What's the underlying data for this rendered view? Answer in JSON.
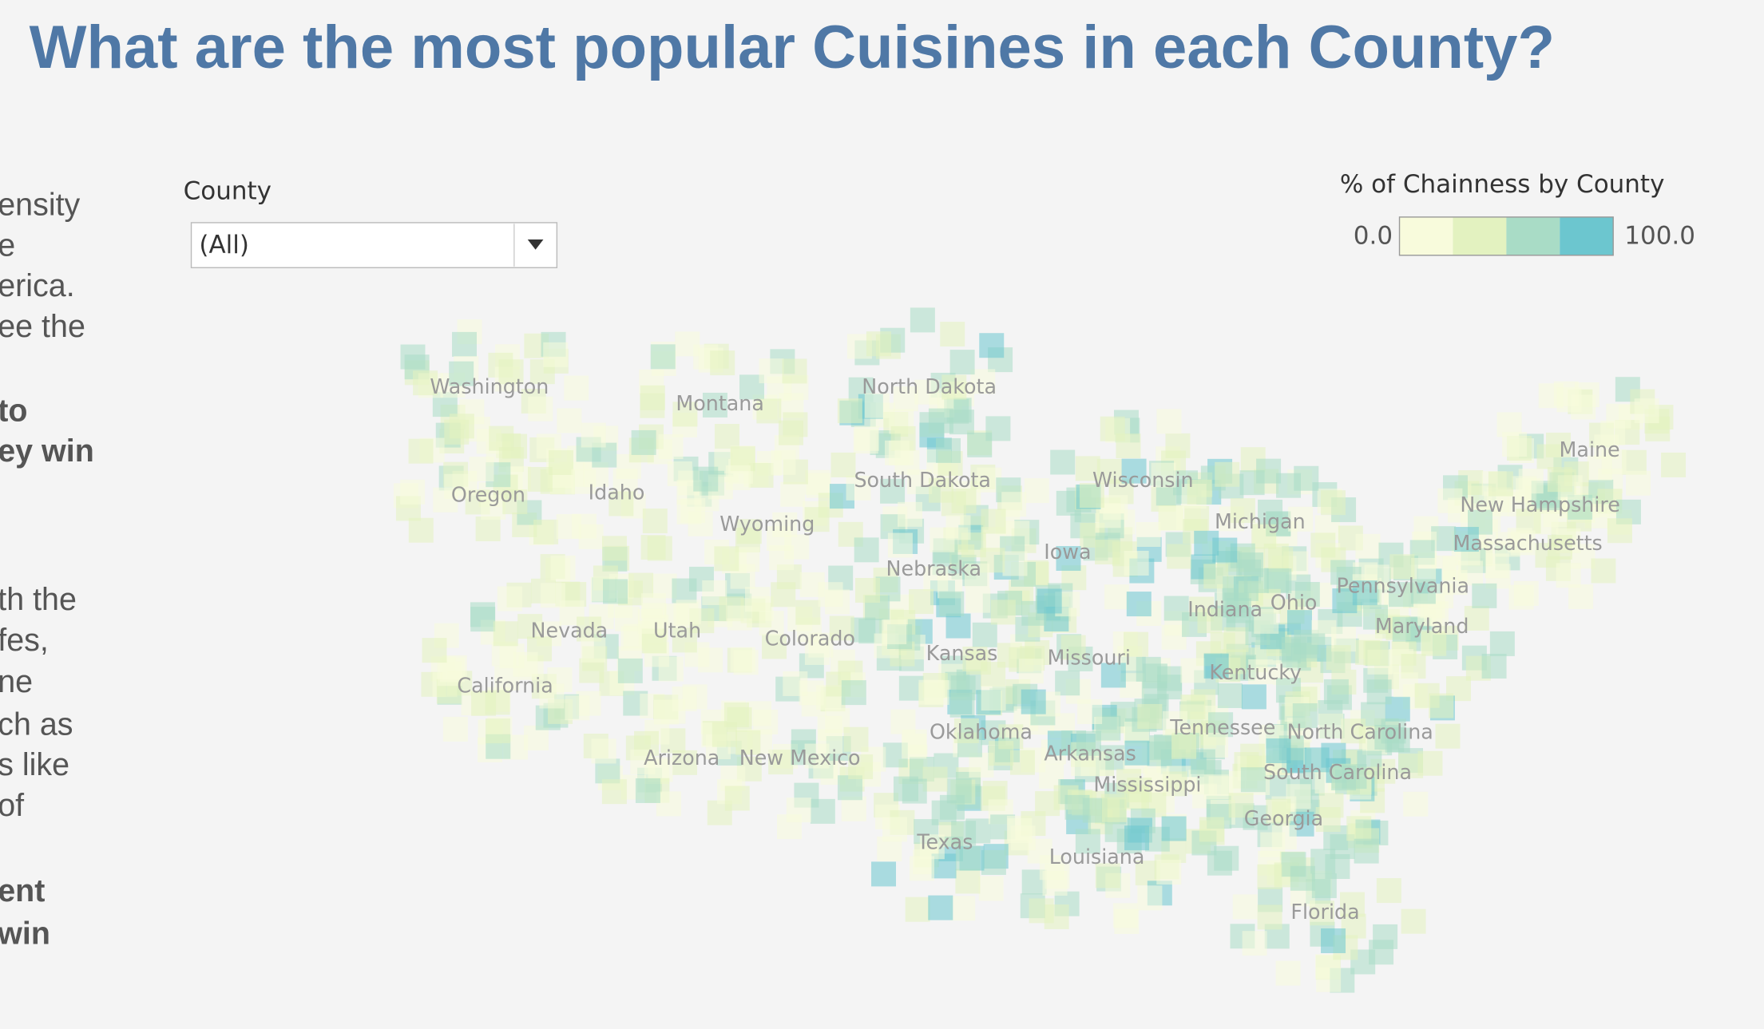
{
  "header": {
    "title": "What are the most popular Cuisines in each County?"
  },
  "side_text": [
    {
      "text": "ensity",
      "bold": false
    },
    {
      "text": "e",
      "bold": false
    },
    {
      "text": "erica.",
      "bold": false
    },
    {
      "text": "ee the",
      "bold": false
    },
    {
      "text": "to",
      "bold": true
    },
    {
      "text": "ey win",
      "bold": true
    },
    {
      "text": "th the",
      "bold": false
    },
    {
      "text": "fes,",
      "bold": false
    },
    {
      "text": "ne",
      "bold": false
    },
    {
      "text": "ch as",
      "bold": false
    },
    {
      "text": "s like",
      "bold": false
    },
    {
      "text": "of",
      "bold": false
    },
    {
      "text": "ent",
      "bold": true
    },
    {
      "text": "win",
      "bold": true
    }
  ],
  "filter": {
    "label": "County",
    "value": "(All)"
  },
  "legend": {
    "title": "% of Chainness by County",
    "min": {
      "value": 0,
      "label": "0.0"
    },
    "max": {
      "value": 100,
      "label": "100.0"
    },
    "colors": [
      "#f8fbdc",
      "#e3f2c0",
      "#a9dcc6",
      "#6cc6cf"
    ]
  },
  "map": {
    "state_labels": [
      "Washington",
      "Montana",
      "North Dakota",
      "Oregon",
      "Idaho",
      "Wyoming",
      "South Dakota",
      "Wisconsin",
      "Michigan",
      "Maine",
      "New Hampshire",
      "Massachusetts",
      "Iowa",
      "Nebraska",
      "Pennsylvania",
      "Ohio",
      "Indiana",
      "Maryland",
      "Nevada",
      "Utah",
      "Colorado",
      "Kansas",
      "Missouri",
      "Kentucky",
      "California",
      "Tennessee",
      "North Carolina",
      "Oklahoma",
      "Arkansas",
      "Arizona",
      "New Mexico",
      "South Carolina",
      "Mississippi",
      "Georgia",
      "Texas",
      "Louisiana",
      "Florida"
    ]
  }
}
